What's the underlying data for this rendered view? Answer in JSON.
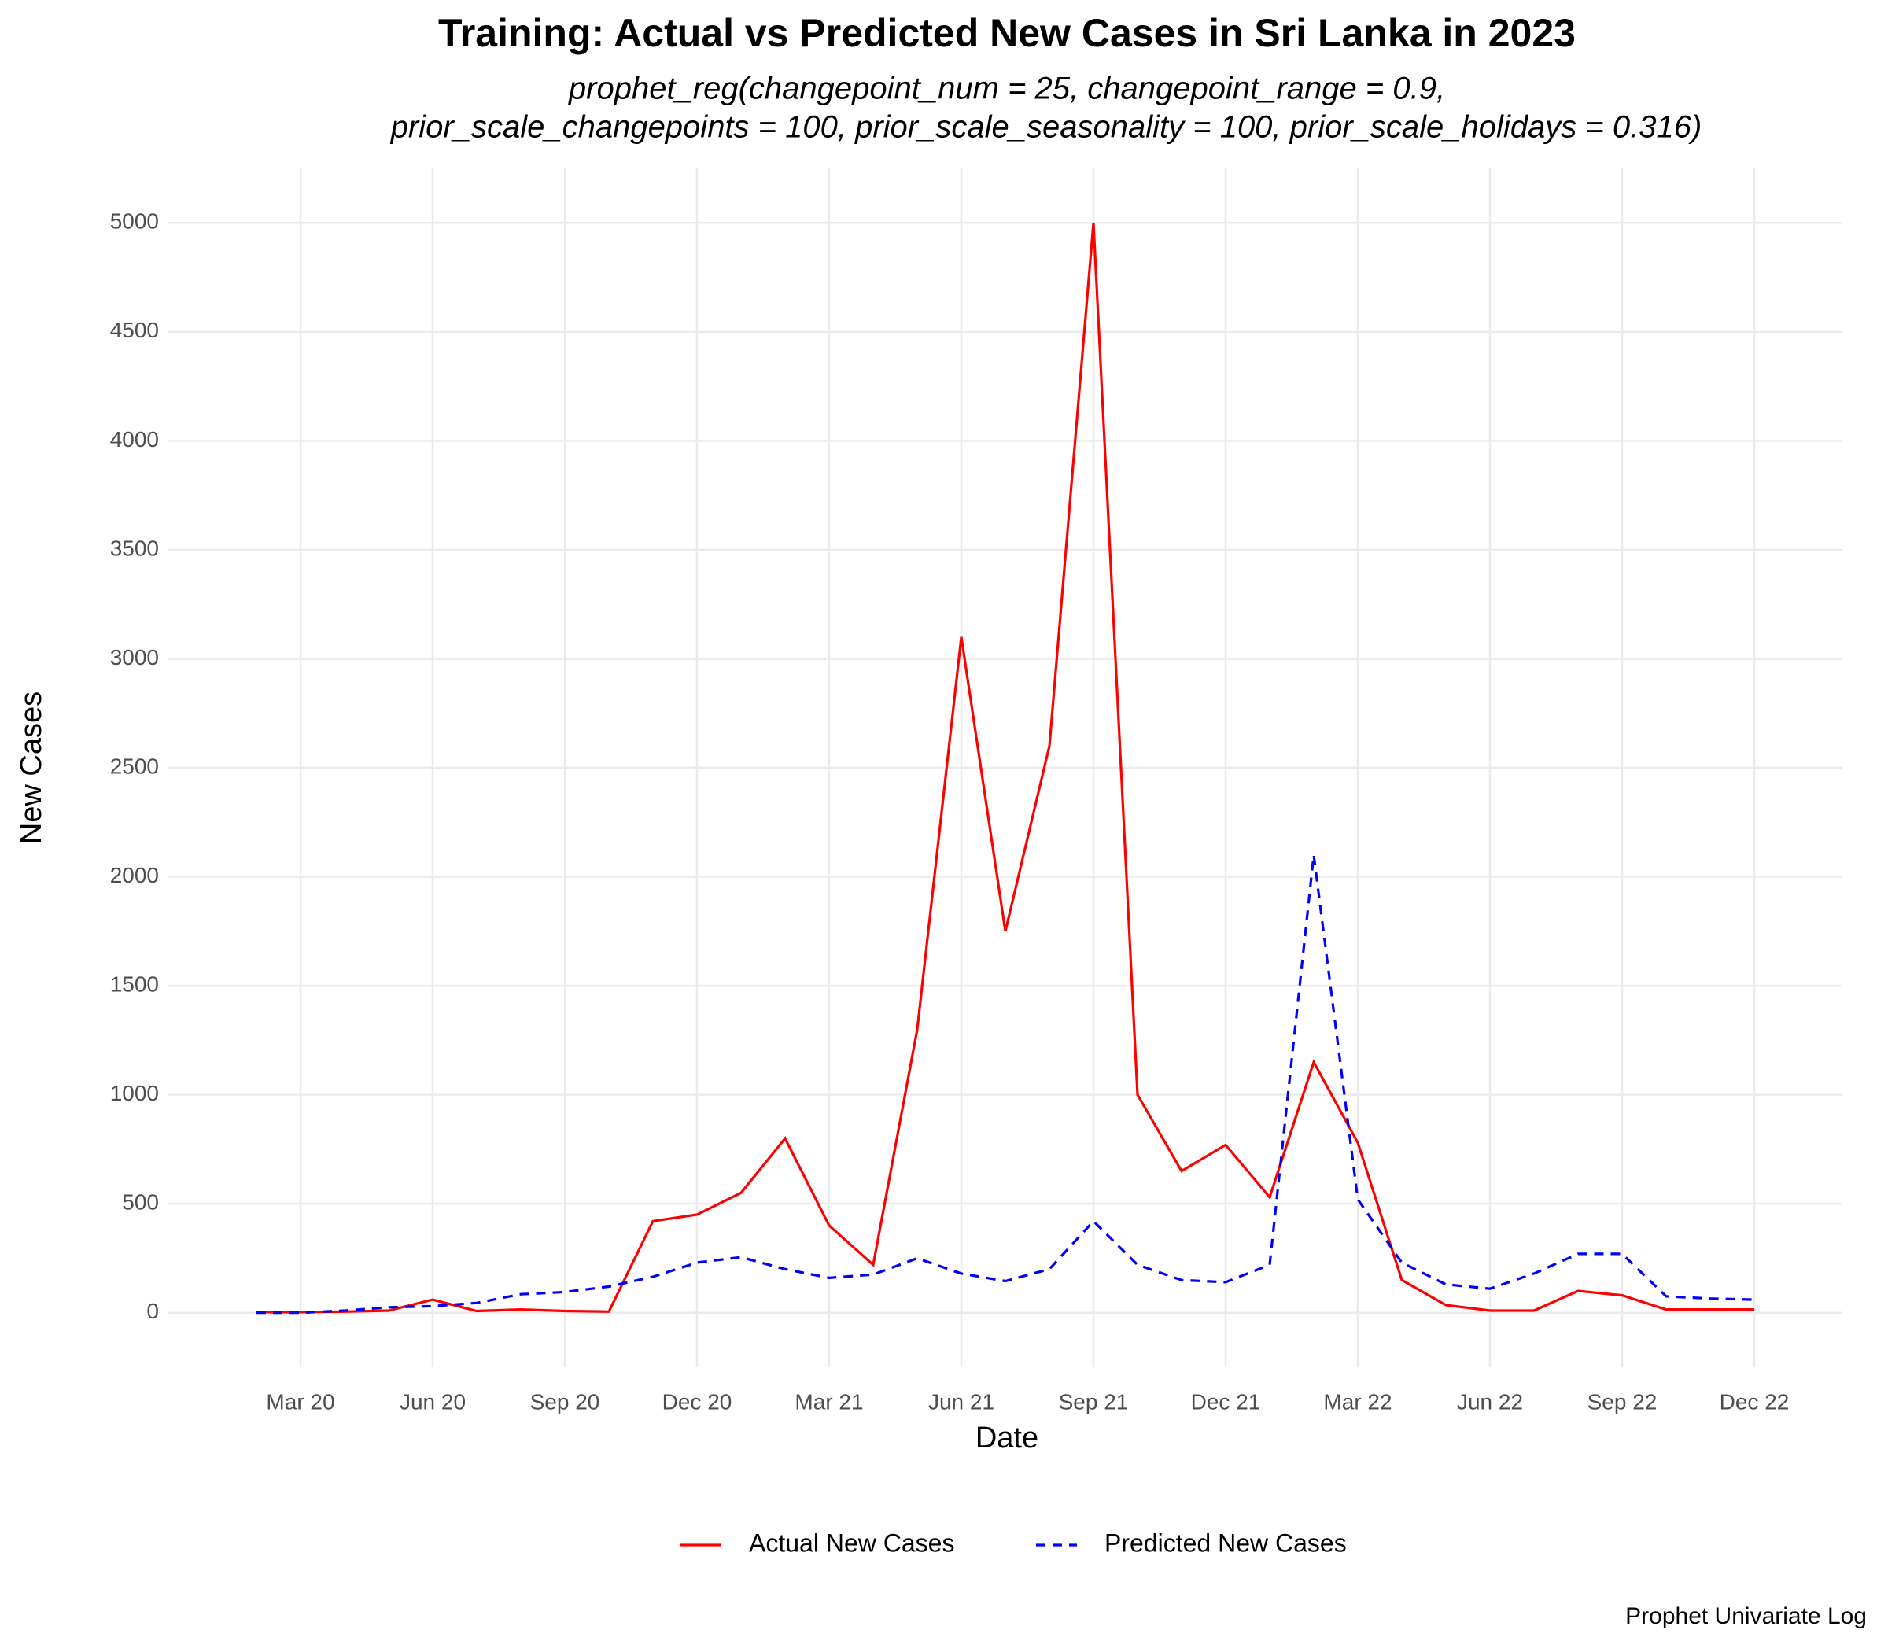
{
  "chart_data": {
    "type": "line",
    "title": "Training: Actual vs Predicted New Cases in Sri Lanka in 2023",
    "subtitle": [
      "prophet_reg(changepoint_num = 25, changepoint_range = 0.9,",
      "prior_scale_changepoints = 100, prior_scale_seasonality = 100, prior_scale_holidays = 0.316)"
    ],
    "x_label": "Date",
    "y_label": "New Cases",
    "caption": "Prophet Univariate Log",
    "x": [
      "2020-02",
      "2020-03",
      "2020-04",
      "2020-05",
      "2020-06",
      "2020-07",
      "2020-08",
      "2020-09",
      "2020-10",
      "2020-11",
      "2020-12",
      "2021-01",
      "2021-02",
      "2021-03",
      "2021-04",
      "2021-05",
      "2021-06",
      "2021-07",
      "2021-08",
      "2021-09",
      "2021-10",
      "2021-11",
      "2021-12",
      "2022-01",
      "2022-02",
      "2022-03",
      "2022-04",
      "2022-05",
      "2022-06",
      "2022-07",
      "2022-08",
      "2022-09",
      "2022-10",
      "2022-11",
      "2022-12"
    ],
    "series": [
      {
        "name": "Actual New Cases",
        "color": "#ff0000",
        "dash": "solid",
        "values": [
          3,
          3,
          5,
          10,
          60,
          8,
          15,
          8,
          5,
          420,
          450,
          550,
          800,
          400,
          220,
          1300,
          3100,
          1750,
          2600,
          5000,
          1000,
          650,
          770,
          530,
          1150,
          780,
          150,
          35,
          10,
          10,
          100,
          80,
          15,
          15,
          15
        ]
      },
      {
        "name": "Predicted New Cases",
        "color": "#0000ff",
        "dash": "dashed",
        "values": [
          0,
          0,
          10,
          25,
          30,
          45,
          85,
          95,
          120,
          165,
          230,
          255,
          200,
          160,
          175,
          250,
          180,
          145,
          200,
          420,
          220,
          150,
          140,
          220,
          2100,
          520,
          230,
          130,
          110,
          180,
          270,
          270,
          75,
          65,
          60
        ]
      }
    ],
    "xlim": [
      "2019-12",
      "2023-02"
    ],
    "xticks": [
      {
        "value": "2020-03",
        "label": "Mar 20"
      },
      {
        "value": "2020-06",
        "label": "Jun 20"
      },
      {
        "value": "2020-09",
        "label": "Sep 20"
      },
      {
        "value": "2020-12",
        "label": "Dec 20"
      },
      {
        "value": "2021-03",
        "label": "Mar 21"
      },
      {
        "value": "2021-06",
        "label": "Jun 21"
      },
      {
        "value": "2021-09",
        "label": "Sep 21"
      },
      {
        "value": "2021-12",
        "label": "Dec 21"
      },
      {
        "value": "2022-03",
        "label": "Mar 22"
      },
      {
        "value": "2022-06",
        "label": "Jun 22"
      },
      {
        "value": "2022-09",
        "label": "Sep 22"
      },
      {
        "value": "2022-12",
        "label": "Dec 22"
      }
    ],
    "ylim": [
      -250,
      5250
    ],
    "yticks": [
      0,
      500,
      1000,
      1500,
      2000,
      2500,
      3000,
      3500,
      4000,
      4500,
      5000
    ],
    "grid": true,
    "legend": "bottom"
  }
}
